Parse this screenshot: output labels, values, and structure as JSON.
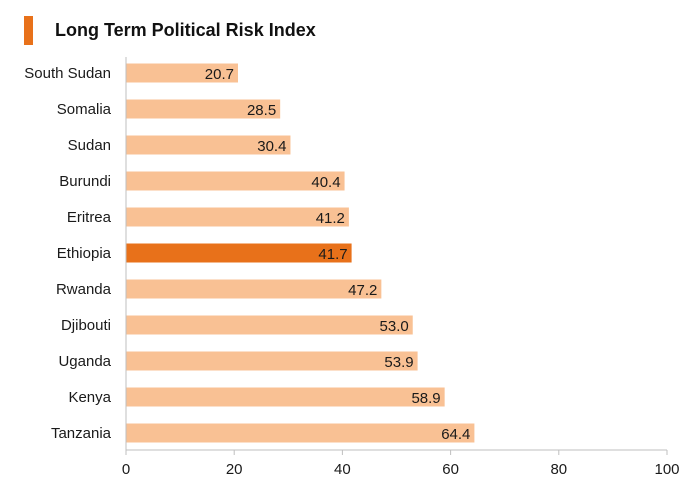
{
  "header": {
    "title": "Long Term Political Risk Index"
  },
  "colors": {
    "accent": "#e8711a",
    "bar": "#f9c194",
    "highlight": "#e8711a",
    "axis": "#bfbfbf"
  },
  "chart_data": {
    "type": "bar",
    "orientation": "horizontal",
    "title": "Long Term Political Risk Index",
    "categories": [
      "South Sudan",
      "Somalia",
      "Sudan",
      "Burundi",
      "Eritrea",
      "Ethiopia",
      "Rwanda",
      "Djibouti",
      "Uganda",
      "Kenya",
      "Tanzania"
    ],
    "values": [
      20.7,
      28.5,
      30.4,
      40.4,
      41.2,
      41.7,
      47.2,
      53.0,
      53.9,
      58.9,
      64.4
    ],
    "value_labels": [
      "20.7",
      "28.5",
      "30.4",
      "40.4",
      "41.2",
      "41.7",
      "47.2",
      "53.0",
      "53.9",
      "58.9",
      "64.4"
    ],
    "highlight_category": "Ethiopia",
    "xlim": [
      0,
      100
    ],
    "xticks": [
      "0",
      "20",
      "40",
      "60",
      "80",
      "100"
    ],
    "xlabel": "",
    "ylabel": "",
    "grid": false,
    "legend": false
  }
}
